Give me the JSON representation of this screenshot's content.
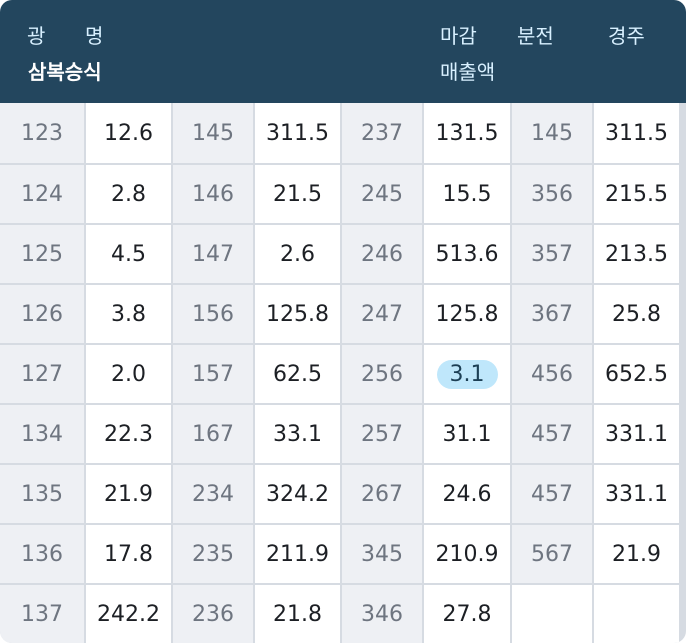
{
  "header": {
    "gwang": "광",
    "myeong": "명",
    "subtitle": "삼복승식",
    "magam": "마감",
    "magam_sub": "매출액",
    "bunjeon": "분전",
    "gyeongju": "경주"
  },
  "table": {
    "rows": [
      [
        "123",
        "12.6",
        "145",
        "311.5",
        "237",
        "131.5",
        "145",
        "311.5"
      ],
      [
        "124",
        "2.8",
        "146",
        "21.5",
        "245",
        "15.5",
        "356",
        "215.5"
      ],
      [
        "125",
        "4.5",
        "147",
        "2.6",
        "246",
        "513.6",
        "357",
        "213.5"
      ],
      [
        "126",
        "3.8",
        "156",
        "125.8",
        "247",
        "125.8",
        "367",
        "25.8"
      ],
      [
        "127",
        "2.0",
        "157",
        "62.5",
        "256",
        "3.1",
        "456",
        "652.5"
      ],
      [
        "134",
        "22.3",
        "167",
        "33.1",
        "257",
        "31.1",
        "457",
        "331.1"
      ],
      [
        "135",
        "21.9",
        "234",
        "324.2",
        "267",
        "24.6",
        "457",
        "331.1"
      ],
      [
        "136",
        "17.8",
        "235",
        "211.9",
        "345",
        "210.9",
        "567",
        "21.9"
      ],
      [
        "137",
        "242.2",
        "236",
        "21.8",
        "346",
        "27.8",
        "",
        ""
      ]
    ],
    "highlight_row": 4,
    "highlight_col": 5
  },
  "colors": {
    "header_bg": "#23465e",
    "key_bg": "#eef0f4",
    "highlight_bg": "#bfe7fb"
  }
}
